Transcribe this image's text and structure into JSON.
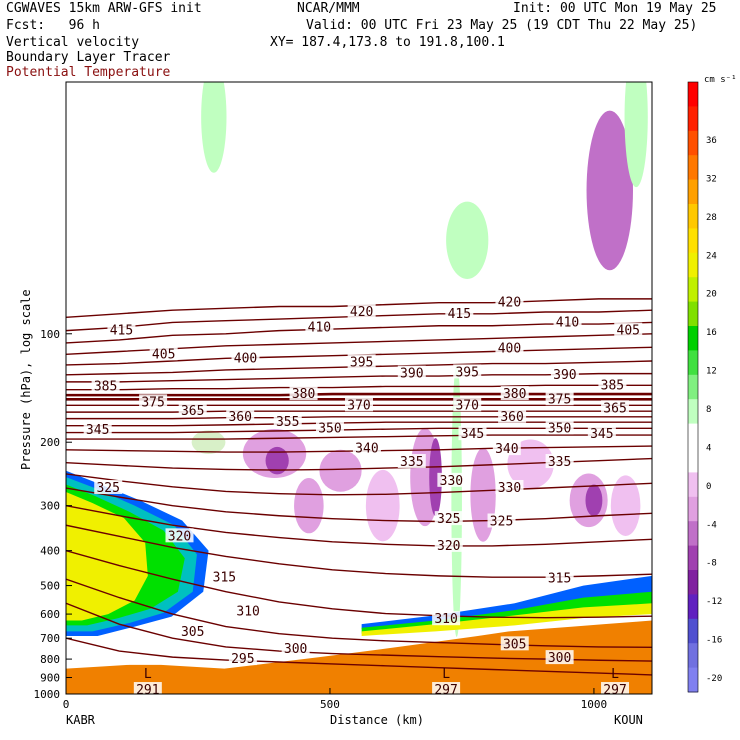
{
  "header": {
    "model": "CGWAVES 15km ARW-GFS init",
    "org": "NCAR/MMM",
    "init": "Init: 00 UTC Mon 19 May 25",
    "fcst": "Fcst:   96 h",
    "valid": "Valid: 00 UTC Fri 23 May 25 (19 CDT Thu 22 May 25)",
    "field1": "Vertical velocity",
    "xy": "XY= 187.4,173.8 to 191.8,100.1",
    "field2": "Boundary Layer Tracer",
    "field3": "Potential Temperature"
  },
  "colors": {
    "theta": "#6b0000",
    "theta_label": "#3a0000",
    "title_red": "#8a1010",
    "terrain": "#f08000",
    "bl_yellow": "#f0f000",
    "bl_green": "#00e000",
    "bl_teal": "#00c0c0",
    "bl_blue": "#0060ff"
  },
  "chart_data": {
    "type": "cross-section",
    "x_axis": {
      "label": "Distance (km)",
      "ticks": [
        0,
        500,
        1000
      ],
      "range": [
        0,
        1110
      ],
      "start_station": "KABR",
      "end_station": "KOUN"
    },
    "y_axis": {
      "label": "Pressure (hPa), log scale",
      "scale": "log",
      "ticks": [
        100,
        200,
        300,
        400,
        500,
        600,
        700,
        800,
        900,
        1000
      ],
      "range": [
        1000,
        20
      ]
    },
    "colorbar": {
      "units": "cm s⁻¹",
      "labels": [
        36,
        32,
        28,
        24,
        20,
        16,
        12,
        8,
        4,
        0,
        -4,
        -8,
        -12,
        -16,
        -20
      ],
      "colors": [
        "#ff0000",
        "#ff2000",
        "#ff5000",
        "#ff7800",
        "#ffa000",
        "#ffc800",
        "#ffe000",
        "#f0f000",
        "#c0f000",
        "#80e000",
        "#00d000",
        "#40e040",
        "#80f080",
        "#c0ffc0",
        "#ffffff",
        "#ffffff",
        "#f0c0f0",
        "#e0a0e0",
        "#c070c8",
        "#a040b0",
        "#8020a0",
        "#6020c0",
        "#5050d0",
        "#7070e0",
        "#8080f0"
      ]
    },
    "theta_contours": [
      {
        "value": 420,
        "p": [
          90,
          88,
          86,
          85,
          84,
          84,
          83,
          82,
          82,
          81,
          80,
          80
        ]
      },
      {
        "value": 415,
        "p": [
          98,
          96,
          93,
          92,
          91,
          90,
          89,
          88,
          88,
          87,
          87,
          86
        ]
      },
      {
        "value": 410,
        "p": [
          106,
          104,
          101,
          100,
          98,
          97,
          96,
          95,
          95,
          94,
          94,
          93
        ]
      },
      {
        "value": 405,
        "p": [
          114,
          112,
          110,
          108,
          107,
          106,
          105,
          104,
          103,
          102,
          101,
          100
        ]
      },
      {
        "value": 400,
        "p": [
          122,
          121,
          119,
          117,
          116,
          115,
          114,
          113,
          112,
          111,
          110,
          109
        ]
      },
      {
        "value": 395,
        "p": [
          130,
          129,
          128,
          126,
          125,
          124,
          123,
          122,
          121,
          121,
          120,
          119
        ]
      },
      {
        "value": 390,
        "p": [
          136,
          136,
          135,
          134,
          133,
          132,
          131,
          131,
          130,
          130,
          129,
          129
        ]
      },
      {
        "value": 385,
        "p": [
          143,
          143,
          142,
          142,
          141,
          141,
          140,
          140,
          140,
          139,
          139,
          139
        ]
      },
      {
        "value": 380,
        "p": [
          148,
          148,
          148,
          148,
          148,
          147,
          147,
          147,
          147,
          147,
          147,
          147
        ]
      },
      {
        "value": 375,
        "p": [
          152,
          152,
          152,
          152,
          152,
          152,
          152,
          152,
          152,
          152,
          152,
          152
        ]
      },
      {
        "value": 370,
        "p": [
          158,
          158,
          158,
          158,
          158,
          158,
          158,
          158,
          158,
          158,
          158,
          158
        ]
      },
      {
        "value": 365,
        "p": [
          165,
          165,
          165,
          164,
          164,
          164,
          164,
          164,
          164,
          164,
          164,
          164
        ]
      },
      {
        "value": 360,
        "p": [
          172,
          172,
          172,
          171,
          171,
          170,
          170,
          170,
          170,
          170,
          170,
          170
        ]
      },
      {
        "value": 355,
        "p": [
          180,
          180,
          180,
          179,
          178,
          177,
          176,
          176,
          176,
          176,
          176,
          176
        ]
      },
      {
        "value": 350,
        "p": [
          188,
          188,
          188,
          187,
          186,
          185,
          184,
          183,
          183,
          183,
          183,
          183
        ]
      },
      {
        "value": 345,
        "p": [
          196,
          196,
          196,
          196,
          195,
          194,
          193,
          192,
          191,
          191,
          191,
          191
        ]
      },
      {
        "value": 340,
        "p": [
          210,
          211,
          212,
          213,
          213,
          212,
          211,
          210,
          208,
          207,
          206,
          205
        ]
      },
      {
        "value": 335,
        "p": [
          228,
          232,
          236,
          238,
          239,
          238,
          236,
          234,
          231,
          228,
          225,
          222
        ]
      },
      {
        "value": 330,
        "p": [
          245,
          256,
          266,
          274,
          278,
          280,
          279,
          276,
          272,
          268,
          264,
          260
        ]
      },
      {
        "value": 325,
        "p": [
          268,
          284,
          300,
          312,
          320,
          326,
          330,
          332,
          330,
          326,
          320,
          315
        ]
      },
      {
        "value": 320,
        "p": [
          300,
          320,
          340,
          356,
          368,
          378,
          384,
          388,
          388,
          384,
          378,
          372
        ]
      },
      {
        "value": 315,
        "p": [
          340,
          365,
          392,
          415,
          435,
          452,
          463,
          470,
          474,
          474,
          470,
          465
        ]
      },
      {
        "value": 310,
        "p": [
          400,
          440,
          480,
          520,
          555,
          580,
          598,
          606,
          612,
          614,
          612,
          608
        ]
      },
      {
        "value": 305,
        "p": [
          480,
          540,
          600,
          650,
          680,
          700,
          712,
          720,
          728,
          735,
          740,
          742
        ]
      },
      {
        "value": 300,
        "p": [
          560,
          640,
          700,
          740,
          760,
          772,
          780,
          788,
          795,
          800,
          806,
          810
        ]
      },
      {
        "value": 295,
        "p": [
          700,
          760,
          790,
          805,
          815,
          825,
          835,
          845,
          855,
          865,
          875,
          885
        ]
      }
    ],
    "contour_labels": [
      {
        "text": "415",
        "km": 105,
        "p": 98
      },
      {
        "text": "405",
        "km": 185,
        "p": 114
      },
      {
        "text": "385",
        "km": 75,
        "p": 140
      },
      {
        "text": "375",
        "km": 165,
        "p": 155
      },
      {
        "text": "345",
        "km": 60,
        "p": 185
      },
      {
        "text": "400",
        "km": 340,
        "p": 117
      },
      {
        "text": "410",
        "km": 480,
        "p": 96
      },
      {
        "text": "420",
        "km": 560,
        "p": 87
      },
      {
        "text": "395",
        "km": 560,
        "p": 120
      },
      {
        "text": "380",
        "km": 450,
        "p": 147
      },
      {
        "text": "365",
        "km": 240,
        "p": 164
      },
      {
        "text": "360",
        "km": 330,
        "p": 170
      },
      {
        "text": "355",
        "km": 420,
        "p": 176
      },
      {
        "text": "370",
        "km": 555,
        "p": 158
      },
      {
        "text": "350",
        "km": 500,
        "p": 183
      },
      {
        "text": "340",
        "km": 570,
        "p": 208
      },
      {
        "text": "335",
        "km": 655,
        "p": 227
      },
      {
        "text": "415",
        "km": 745,
        "p": 88
      },
      {
        "text": "390",
        "km": 655,
        "p": 129
      },
      {
        "text": "395",
        "km": 760,
        "p": 128
      },
      {
        "text": "370",
        "km": 760,
        "p": 158
      },
      {
        "text": "345",
        "km": 770,
        "p": 190
      },
      {
        "text": "330",
        "km": 730,
        "p": 256
      },
      {
        "text": "325",
        "km": 725,
        "p": 327
      },
      {
        "text": "325",
        "km": 825,
        "p": 332
      },
      {
        "text": "320",
        "km": 725,
        "p": 388
      },
      {
        "text": "330",
        "km": 840,
        "p": 268
      },
      {
        "text": "340",
        "km": 835,
        "p": 209
      },
      {
        "text": "360",
        "km": 845,
        "p": 170
      },
      {
        "text": "380",
        "km": 850,
        "p": 147
      },
      {
        "text": "400",
        "km": 840,
        "p": 110
      },
      {
        "text": "420",
        "km": 840,
        "p": 82
      },
      {
        "text": "410",
        "km": 950,
        "p": 93
      },
      {
        "text": "390",
        "km": 945,
        "p": 130
      },
      {
        "text": "375",
        "km": 935,
        "p": 152
      },
      {
        "text": "350",
        "km": 935,
        "p": 183
      },
      {
        "text": "335",
        "km": 935,
        "p": 227
      },
      {
        "text": "385",
        "km": 1035,
        "p": 139
      },
      {
        "text": "365",
        "km": 1040,
        "p": 161
      },
      {
        "text": "345",
        "km": 1015,
        "p": 190
      },
      {
        "text": "405",
        "km": 1065,
        "p": 98
      },
      {
        "text": "325",
        "km": 80,
        "p": 268
      },
      {
        "text": "320",
        "km": 215,
        "p": 365
      },
      {
        "text": "315",
        "km": 300,
        "p": 475
      },
      {
        "text": "310",
        "km": 345,
        "p": 590
      },
      {
        "text": "305",
        "km": 240,
        "p": 672
      },
      {
        "text": "295",
        "km": 335,
        "p": 800
      },
      {
        "text": "300",
        "km": 435,
        "p": 750
      },
      {
        "text": "310",
        "km": 720,
        "p": 620
      },
      {
        "text": "305",
        "km": 850,
        "p": 728
      },
      {
        "text": "300",
        "km": 935,
        "p": 795
      },
      {
        "text": "315",
        "km": 935,
        "p": 478
      },
      {
        "text": "L",
        "km": 155,
        "p": 880
      },
      {
        "text": "291",
        "km": 155,
        "p": 975
      },
      {
        "text": "L",
        "km": 720,
        "p": 880
      },
      {
        "text": "297",
        "km": 720,
        "p": 975
      },
      {
        "text": "L",
        "km": 1040,
        "p": 880
      },
      {
        "text": "297",
        "km": 1040,
        "p": 975
      }
    ],
    "terrain_pressure": [
      800,
      790,
      780,
      780,
      790,
      800,
      780,
      760,
      740,
      720,
      700,
      680,
      660,
      640,
      620,
      610,
      600,
      590,
      580,
      575
    ],
    "terrain_km": [
      0,
      60,
      120,
      180,
      240,
      300,
      360,
      420,
      480,
      540,
      600,
      660,
      720,
      780,
      840,
      900,
      960,
      1020,
      1080,
      1110
    ]
  }
}
